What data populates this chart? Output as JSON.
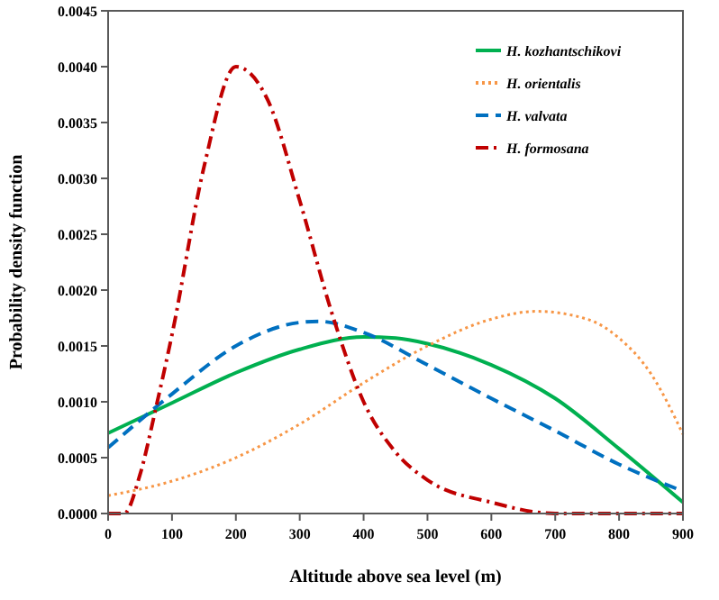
{
  "chart_data": {
    "type": "line",
    "xlabel": "Altitude above sea level (m)",
    "ylabel": "Probability density function",
    "xlim": [
      0,
      900
    ],
    "xticks": [
      0,
      100,
      200,
      300,
      400,
      500,
      600,
      700,
      800,
      900
    ],
    "ylim": [
      0,
      0.0045
    ],
    "yticks": [
      {
        "value": 0,
        "label": "0.0000"
      },
      {
        "value": 0.0005,
        "label": "0.0005"
      },
      {
        "value": 0.001,
        "label": "0.0010"
      },
      {
        "value": 0.0015,
        "label": "0.0015"
      },
      {
        "value": 0.002,
        "label": "0.0020"
      },
      {
        "value": 0.0025,
        "label": "0.0025"
      },
      {
        "value": 0.003,
        "label": "0.0030"
      },
      {
        "value": 0.0035,
        "label": "0.0035"
      },
      {
        "value": 0.004,
        "label": "0.0040"
      },
      {
        "value": 0.0045,
        "label": "0.0045"
      }
    ],
    "grid": false,
    "legend": "top right",
    "series": [
      {
        "name": "H. kozhantschikovi",
        "color": "#00b050",
        "line_style": "solid",
        "x": [
          0,
          100,
          200,
          300,
          400,
          450,
          500,
          600,
          700,
          800,
          900
        ],
        "values": [
          0.00072,
          0.00099,
          0.00126,
          0.00147,
          0.00158,
          0.00157,
          0.00152,
          0.00133,
          0.00103,
          0.00058,
          0.0001
        ]
      },
      {
        "name": "H. orientalis",
        "color": "#f79646",
        "line_style": "dotted",
        "x": [
          0,
          100,
          200,
          300,
          400,
          500,
          600,
          670,
          750,
          800,
          850,
          900
        ],
        "values": [
          0.00016,
          0.00029,
          0.0005,
          0.0008,
          0.00117,
          0.0015,
          0.00174,
          0.00181,
          0.00174,
          0.00157,
          0.00125,
          0.00071
        ]
      },
      {
        "name": "H. valvata",
        "color": "#0070c0",
        "line_style": "dashed",
        "x": [
          0,
          100,
          200,
          300,
          330,
          400,
          500,
          600,
          700,
          800,
          900
        ],
        "values": [
          0.00059,
          0.00107,
          0.0015,
          0.00171,
          0.00172,
          0.00162,
          0.00133,
          0.00103,
          0.00074,
          0.00044,
          0.0002
        ]
      },
      {
        "name": "H. formosana",
        "color": "#c00000",
        "line_style": "dashdot",
        "x": [
          0,
          25,
          50,
          75,
          100,
          150,
          200,
          250,
          300,
          350,
          400,
          450,
          500,
          600,
          700,
          800,
          900
        ],
        "values": [
          0,
          0,
          0.00035,
          0.00095,
          0.0016,
          0.0031,
          0.004,
          0.0037,
          0.0028,
          0.0018,
          0.001,
          0.00055,
          0.0003,
          0.0001,
          0,
          0,
          0
        ]
      }
    ]
  }
}
